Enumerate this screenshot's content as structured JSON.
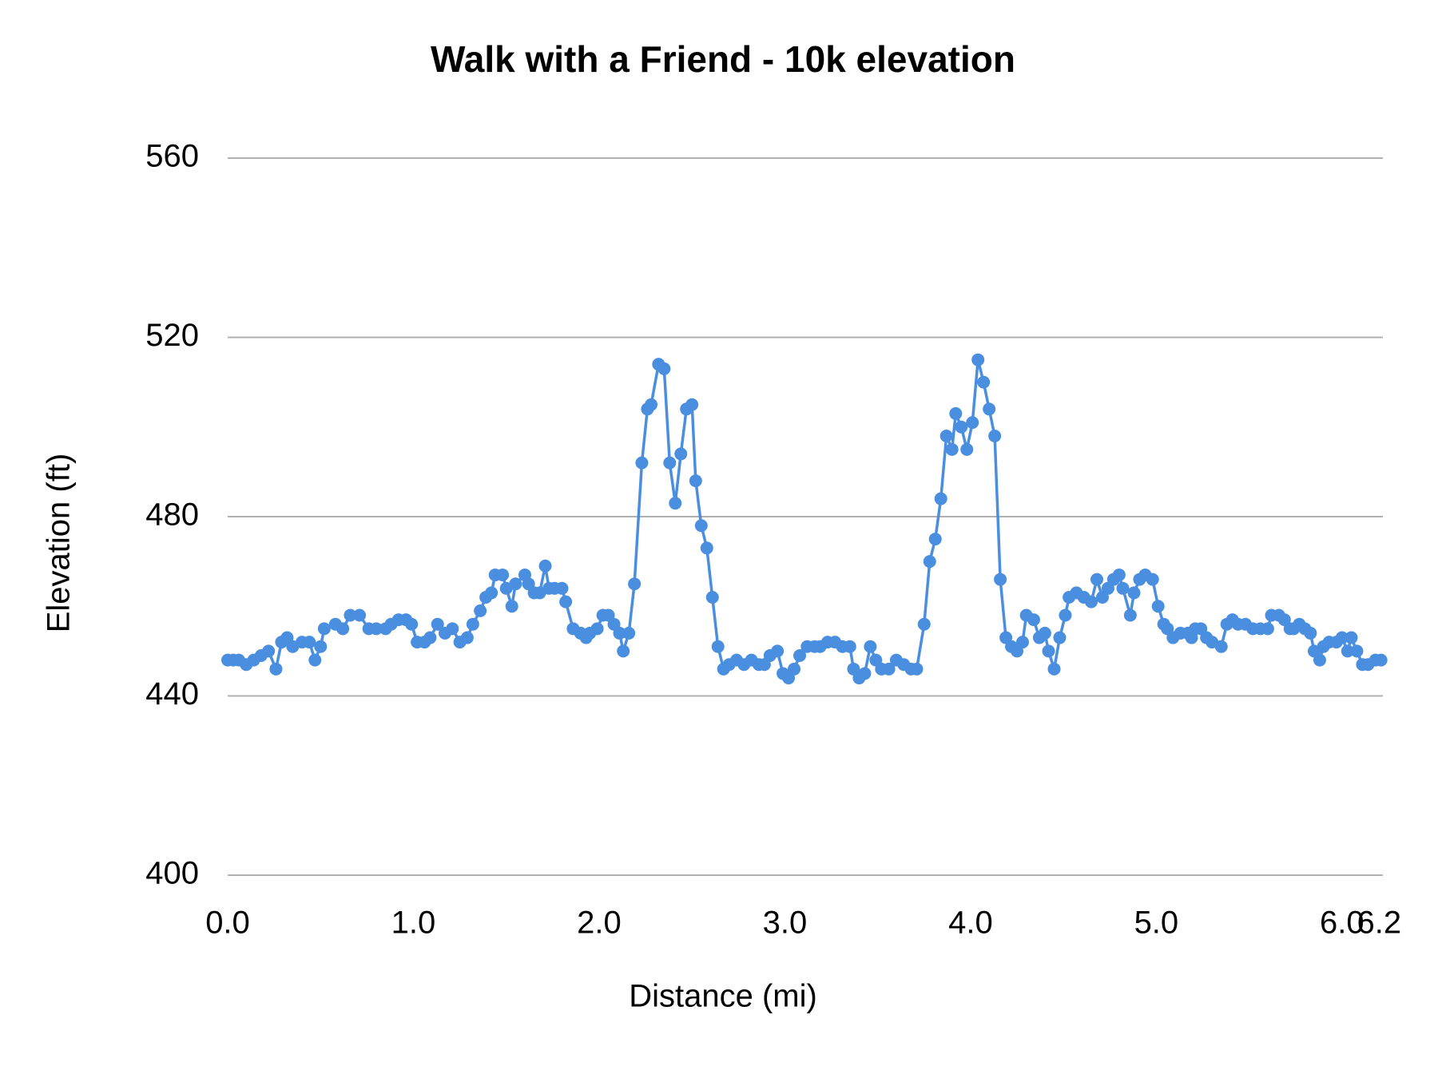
{
  "chart_data": {
    "type": "line",
    "title": "Walk with a Friend - 10k elevation",
    "x_label": "Distance (mi)",
    "y_label": "Elevation (ft)",
    "x": [
      0.0,
      0.03,
      0.06,
      0.1,
      0.14,
      0.18,
      0.22,
      0.26,
      0.29,
      0.32,
      0.35,
      0.4,
      0.44,
      0.47,
      0.5,
      0.52,
      0.58,
      0.62,
      0.66,
      0.71,
      0.76,
      0.8,
      0.85,
      0.88,
      0.92,
      0.96,
      0.99,
      1.02,
      1.06,
      1.09,
      1.13,
      1.17,
      1.21,
      1.25,
      1.29,
      1.32,
      1.36,
      1.39,
      1.42,
      1.44,
      1.48,
      1.5,
      1.53,
      1.55,
      1.6,
      1.62,
      1.65,
      1.68,
      1.71,
      1.73,
      1.76,
      1.8,
      1.82,
      1.86,
      1.9,
      1.93,
      1.95,
      1.99,
      2.02,
      2.05,
      2.08,
      2.11,
      2.13,
      2.16,
      2.19,
      2.23,
      2.26,
      2.28,
      2.32,
      2.35,
      2.38,
      2.41,
      2.44,
      2.47,
      2.5,
      2.52,
      2.55,
      2.58,
      2.61,
      2.64,
      2.67,
      2.7,
      2.74,
      2.78,
      2.82,
      2.86,
      2.89,
      2.92,
      2.96,
      2.99,
      3.02,
      3.05,
      3.08,
      3.12,
      3.16,
      3.19,
      3.23,
      3.27,
      3.31,
      3.35,
      3.37,
      3.4,
      3.43,
      3.46,
      3.49,
      3.52,
      3.56,
      3.6,
      3.64,
      3.68,
      3.71,
      3.75,
      3.78,
      3.81,
      3.84,
      3.87,
      3.9,
      3.92,
      3.95,
      3.98,
      4.01,
      4.04,
      4.07,
      4.1,
      4.13,
      4.16,
      4.19,
      4.22,
      4.25,
      4.28,
      4.3,
      4.34,
      4.37,
      4.4,
      4.42,
      4.45,
      4.48,
      4.51,
      4.53,
      4.57,
      4.61,
      4.65,
      4.68,
      4.71,
      4.74,
      4.77,
      4.8,
      4.82,
      4.86,
      4.88,
      4.91,
      4.94,
      4.98,
      5.01,
      5.04,
      5.06,
      5.09,
      5.13,
      5.17,
      5.19,
      5.21,
      5.24,
      5.27,
      5.3,
      5.35,
      5.38,
      5.41,
      5.44,
      5.48,
      5.52,
      5.56,
      5.6,
      5.62,
      5.66,
      5.69,
      5.72,
      5.74,
      5.77,
      5.8,
      5.83,
      5.85,
      5.88,
      5.9,
      5.93,
      5.97,
      6.0,
      6.03,
      6.05,
      6.08,
      6.11,
      6.14,
      6.18,
      6.21
    ],
    "series": [
      {
        "name": "Elevation (ft)",
        "color": "#4a8ee0",
        "values": [
          448,
          448,
          448,
          447,
          448,
          449,
          450,
          446,
          452,
          453,
          451,
          452,
          452,
          448,
          451,
          455,
          456,
          455,
          458,
          458,
          455,
          455,
          455,
          456,
          457,
          457,
          456,
          452,
          452,
          453,
          456,
          454,
          455,
          452,
          453,
          456,
          459,
          462,
          463,
          467,
          467,
          464,
          460,
          465,
          467,
          465,
          463,
          463,
          469,
          464,
          464,
          464,
          461,
          455,
          454,
          453,
          454,
          455,
          458,
          458,
          456,
          454,
          450,
          454,
          465,
          492,
          504,
          505,
          514,
          513,
          492,
          483,
          494,
          504,
          505,
          488,
          478,
          473,
          462,
          451,
          446,
          447,
          448,
          447,
          448,
          447,
          447,
          449,
          450,
          445,
          444,
          446,
          449,
          451,
          451,
          451,
          452,
          452,
          451,
          451,
          446,
          444,
          445,
          451,
          448,
          446,
          446,
          448,
          447,
          446,
          446,
          456,
          470,
          475,
          484,
          498,
          495,
          503,
          500,
          495,
          501,
          515,
          510,
          504,
          498,
          466,
          453,
          451,
          450,
          452,
          458,
          457,
          453,
          454,
          450,
          446,
          453,
          458,
          462,
          463,
          462,
          461,
          466,
          462,
          464,
          466,
          467,
          464,
          458,
          463,
          466,
          467,
          466,
          460,
          456,
          455,
          453,
          454,
          454,
          453,
          455,
          455,
          453,
          452,
          451,
          456,
          457,
          456,
          456,
          455,
          455,
          455,
          458,
          458,
          457,
          455,
          455,
          456,
          455,
          454,
          450,
          448,
          451,
          452,
          452,
          453,
          450,
          453,
          450,
          447,
          447,
          448,
          448
        ]
      }
    ],
    "xlim": [
      0,
      6.22
    ],
    "xticks": [
      {
        "value": 0,
        "label": "0.0"
      },
      {
        "value": 1,
        "label": "1.0"
      },
      {
        "value": 2,
        "label": "2.0"
      },
      {
        "value": 3,
        "label": "3.0"
      },
      {
        "value": 4,
        "label": "4.0"
      },
      {
        "value": 5,
        "label": "5.0"
      },
      {
        "value": 6,
        "label": "6.0"
      },
      {
        "value": 6.2,
        "label": "6.2"
      }
    ],
    "ylim": [
      400,
      560
    ],
    "yticks": [
      400,
      440,
      480,
      520,
      560
    ],
    "grid": true
  }
}
